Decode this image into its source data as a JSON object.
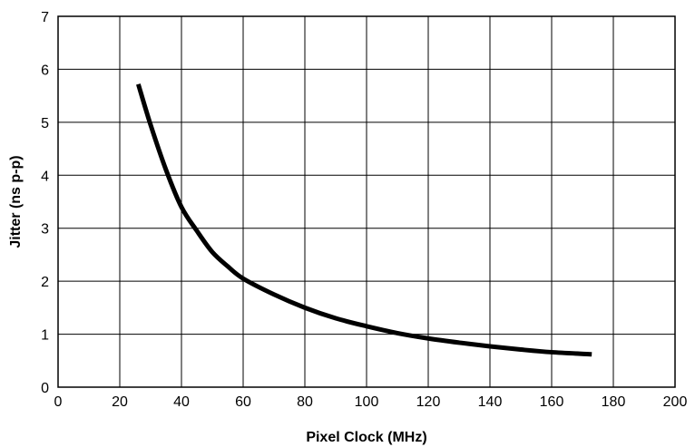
{
  "chart_data": {
    "type": "line",
    "title": "",
    "xlabel": "Pixel Clock (MHz)",
    "ylabel": "Jitter (ns p-p)",
    "xlim": [
      0,
      200
    ],
    "ylim": [
      0,
      7
    ],
    "xticks": [
      0,
      20,
      40,
      60,
      80,
      100,
      120,
      140,
      160,
      180,
      200
    ],
    "yticks": [
      0,
      1,
      2,
      3,
      4,
      5,
      6,
      7
    ],
    "grid": true,
    "legend": "none",
    "line_color": "#000000",
    "series": [
      {
        "x": [
          26,
          30,
          35,
          40,
          45,
          50,
          55,
          60,
          70,
          80,
          90,
          100,
          110,
          120,
          130,
          140,
          150,
          160,
          173
        ],
        "values": [
          5.72,
          4.95,
          4.1,
          3.4,
          2.95,
          2.55,
          2.28,
          2.05,
          1.75,
          1.5,
          1.3,
          1.15,
          1.02,
          0.92,
          0.84,
          0.77,
          0.71,
          0.66,
          0.62
        ]
      }
    ]
  }
}
